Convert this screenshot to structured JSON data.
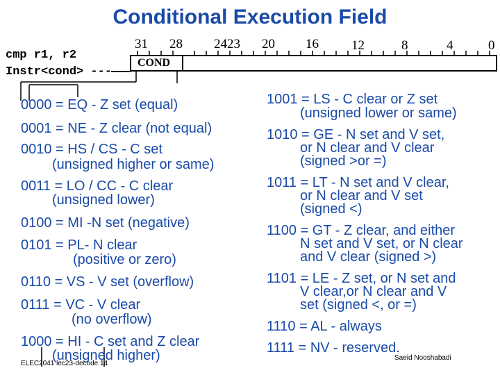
{
  "title": "Conditional Execution Field",
  "instruction": {
    "line1": "cmp r1, r2",
    "line2": "Instr<cond> ---"
  },
  "bit_labels": {
    "b31": "31",
    "b28": "28",
    "b2423": "2423",
    "b20": "20",
    "b16": "16",
    "b12": "12",
    "b8": "8",
    "b4": "4",
    "b0": "0"
  },
  "field_label": "COND",
  "left_codes": [
    {
      "line1": "0000 = EQ - Z set (equal)",
      "line2": ""
    },
    {
      "line1": "0001 = NE - Z clear (not equal)",
      "line2": ""
    },
    {
      "line1": "0010 = HS / CS - C set",
      "line2": "(unsigned higher or same)"
    },
    {
      "line1": "0011 = LO / CC - C clear",
      "line2": "(unsigned lower)"
    },
    {
      "line1": "0100 = MI -N set (negative)",
      "line2": ""
    },
    {
      "line1": "0101 = PL- N clear",
      "line2": "(positive or zero)"
    },
    {
      "line1": "0110 = VS - V set (overflow)",
      "line2": ""
    },
    {
      "line1": "0111 = VC - V clear",
      "line2": "(no overflow)"
    },
    {
      "line1": "1000 = HI - C set and Z clear",
      "line2": "(unsigned higher)"
    }
  ],
  "right_codes": [
    {
      "line1": "1001 = LS - C clear or Z set",
      "line2": "(unsigned lower or same)",
      "line3": ""
    },
    {
      "line1": "1010 = GE - N set and V set,",
      "line2": "or N clear and V clear",
      "line3": "(signed >or =)"
    },
    {
      "line1": "1011 = LT - N set and V clear,",
      "line2": "or N clear and V set",
      "line3": "(signed <)"
    },
    {
      "line1": "1100 = GT - Z clear, and either",
      "line2": "N set and V set, or N clear",
      "line3": "and V clear (signed >)"
    },
    {
      "line1": "1101 = LE - Z set, or N set and",
      "line2": "V clear,or N clear and V",
      "line3": "set (signed <, or =)"
    },
    {
      "line1": "1110 = AL - always",
      "line2": "",
      "line3": ""
    },
    {
      "line1": "1111 = NV - reserved.",
      "line2": "",
      "line3": ""
    }
  ],
  "footer": {
    "left": "ELEC2041 lec23-decode.14",
    "right": "Saeid Nooshabadi"
  },
  "colors": {
    "title": "#1a4aa8",
    "text": "#1a4aa8",
    "lines": "#000000"
  }
}
